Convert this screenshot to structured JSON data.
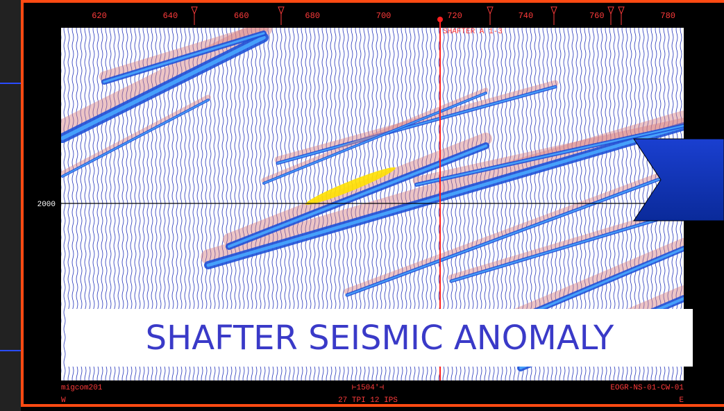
{
  "top_axis": {
    "labels": [
      620,
      640,
      660,
      680,
      700,
      720,
      740,
      760,
      780
    ]
  },
  "left_axis": {
    "label": 2000
  },
  "well_label": "SHAFTER A 1-3",
  "title": "SHAFTER SEISMIC ANOMALY",
  "footer": {
    "left_top": "migcom201",
    "left_bottom": "W",
    "center_top": "⊢1504'⊣",
    "center_bottom": "27 TPI 12 IPS",
    "right_top": "EOGR-NS-01-CW-01",
    "right_bottom": "E"
  }
}
